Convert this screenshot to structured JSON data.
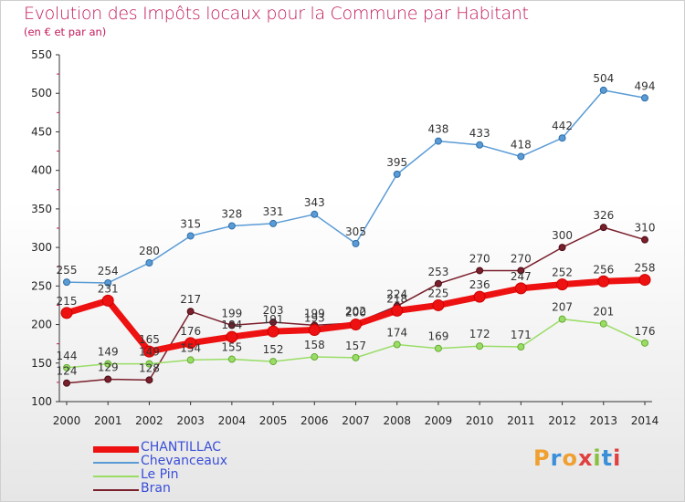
{
  "title": "Evolution des Impôts locaux pour la Commune par Habitant",
  "subtitle": "(en € et par an)",
  "logo": "Proxiti",
  "chart_data": {
    "type": "line",
    "title": "Evolution des Impôts locaux pour la Commune par Habitant",
    "subtitle": "(en € et par an)",
    "x": [
      "2000",
      "2001",
      "2002",
      "2003",
      "2004",
      "2005",
      "2006",
      "2007",
      "2008",
      "2009",
      "2010",
      "2011",
      "2012",
      "2013",
      "2014"
    ],
    "ylim": [
      100,
      550
    ],
    "yticks": [
      100,
      150,
      200,
      250,
      300,
      350,
      400,
      450,
      500,
      550
    ],
    "grid": false,
    "legend_position": "bottom-left",
    "series": [
      {
        "name": "CHANTILLAC",
        "color": "#ee1111",
        "values": [
          215,
          231,
          165,
          176,
          184,
          191,
          193,
          200,
          218,
          225,
          236,
          247,
          252,
          256,
          258
        ]
      },
      {
        "name": "Chevanceaux",
        "color": "#5a9bd5",
        "values": [
          255,
          254,
          280,
          315,
          328,
          331,
          343,
          305,
          395,
          438,
          433,
          418,
          442,
          504,
          494
        ]
      },
      {
        "name": "Le Pin",
        "color": "#99dd66",
        "values": [
          144,
          149,
          149,
          154,
          155,
          152,
          158,
          157,
          174,
          169,
          172,
          171,
          207,
          201,
          176
        ]
      },
      {
        "name": "Bran",
        "color": "#7a1f2b",
        "values": [
          124,
          129,
          128,
          217,
          199,
          203,
          199,
          202,
          224,
          253,
          270,
          270,
          300,
          326,
          310
        ]
      }
    ]
  }
}
